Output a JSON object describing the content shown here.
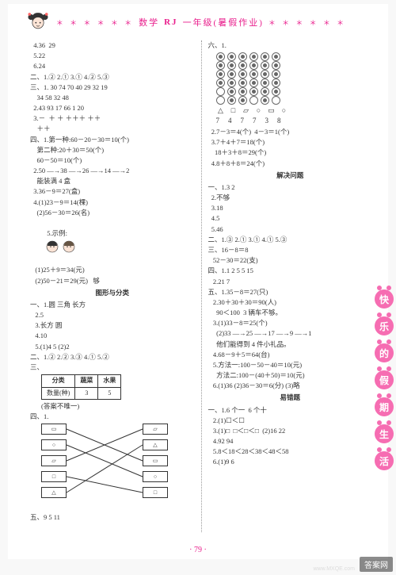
{
  "header": {
    "stars": "＊ ＊ ＊ ＊ ＊ ＊",
    "subject": "数学",
    "edition": "RJ",
    "grade": "一年级(暑假作业)",
    "stars_right": "＊ ＊ ＊ ＊ ＊ ＊"
  },
  "left_column": [
    "  4.36  29",
    "  5.22",
    "  6.24",
    "二、1.② 2.① 3.① 4.② 5.③",
    "三、1. 30 74 70 40 29 32 19",
    "    34 58 32 48",
    "  2.43 93 17 66 1 20",
    "  3.－  ＋ ＋ ＋＋＋ ＋＋",
    "    ＋＋",
    "四、1.第一种:60－20－30＝10(个)",
    "    第二种:20＋30＝50(个)",
    "    60－50＝10(个)",
    "  2.50 —→38 —→26 —→14 —→2",
    "    能装满 4 盒",
    "  3.36－9＝27(盒)",
    "  4.(1)23－9＝14(棵)",
    "    (2)56－30＝26(名)",
    "  5.示例:",
    "",
    "   (1)25＋9＝34(元)",
    "   (2)50－21＝29(元)   够"
  ],
  "section_shapes_title": "图形与分类",
  "shapes_lines": [
    "一、1.圆 三角 长方",
    "   2.5",
    "   3.长方 圆",
    "   4.10",
    "   5.(1)4 5 (2)2",
    "二、1.② 2.② 3.③ 4.① 5.②"
  ],
  "table1": {
    "headers": [
      "分类",
      "蔬菜",
      "水果"
    ],
    "row": [
      "数量(种)",
      "3",
      "5"
    ]
  },
  "table_note": "(答案不唯一)",
  "four_label": "四、1.",
  "five_line": "五、9 5 11",
  "six_label": "六、1.",
  "circles": {
    "rows": 6,
    "cols": 6,
    "pattern": [
      [
        1,
        1,
        1,
        1,
        1,
        1
      ],
      [
        1,
        1,
        1,
        1,
        1,
        1
      ],
      [
        1,
        1,
        1,
        1,
        1,
        1
      ],
      [
        1,
        1,
        1,
        1,
        1,
        1
      ],
      [
        0,
        1,
        1,
        1,
        1,
        1
      ],
      [
        0,
        1,
        1,
        0,
        1,
        0
      ]
    ],
    "shapes": [
      "△",
      "□",
      "▱",
      "○",
      "▭",
      "○"
    ],
    "numbers": [
      "7",
      "4",
      "7",
      "7",
      "3",
      "8"
    ]
  },
  "right_lines_a": [
    "  2.7－3＝4(个)  4－3＝1(个)",
    "  3.7＋4＋7＝18(个)",
    "    18＋3＋8＝29(个)",
    "  4.8＋8＋8＝24(个)"
  ],
  "section_solve_title": "解决问题",
  "right_lines_b": [
    "一、1.3 2",
    "  2.不够",
    "  3.18",
    "  4.5",
    "  5.46",
    "二、1.③ 2.① 3.① 4.① 5.③",
    "三、16－8＝8",
    "   52－30＝22(支)",
    "四、1.1 2 5 5 15",
    "   2.21 7",
    "五、1.35－8＝27(只)",
    "   2.30＋30＋30＝90(人)",
    "     90＜100  3 辆车不够。",
    "   3.(1)33－8＝25(个)",
    "     (2)33 —→25 —→17 —→9 —→1",
    "     他们能得到 4 件小礼品。",
    "   4.68－9＋5＝64(台)",
    "   5.方法一:100－50－40＝10(元)",
    "     方法二:100－(40＋50)＝10(元)",
    "   6.(1)36 (2)36－30＝6(分) (3)略"
  ],
  "section_wrong_title": "易错题",
  "right_lines_c": [
    "一、1.6 个一  6 个十",
    "   2.(1)☐＜☐",
    "   3.(1)□  □＜□＜□  (2)16 22",
    "   4.92 94",
    "   5.8＜18＜28＜38＜48＜58",
    "   6.(1)9 6"
  ],
  "side_badges": [
    "快",
    "乐",
    "的",
    "假",
    "期",
    "生",
    "活"
  ],
  "page_number": "· 79 ·",
  "watermark": "答案网",
  "watermark_sub": "www.MXQE.com",
  "colors": {
    "accent": "#e91e8c",
    "badge": "#f66db2",
    "divider": "#999999"
  },
  "matching": {
    "left_shapes": [
      "▭",
      "○",
      "▱",
      "□",
      "△"
    ],
    "right_shapes": [
      "▱",
      "△",
      "▭",
      "○",
      "□"
    ],
    "connections": [
      [
        0,
        2
      ],
      [
        1,
        3
      ],
      [
        2,
        0
      ],
      [
        3,
        4
      ],
      [
        4,
        1
      ]
    ]
  }
}
